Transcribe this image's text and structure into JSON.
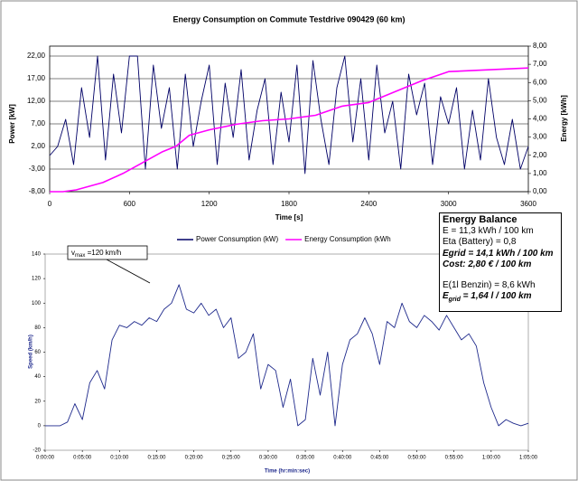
{
  "chart_data": [
    {
      "type": "line",
      "title": "Energy Consumption on Commute Testdrive 090429 (60 km)",
      "x_label": "Time [s]",
      "y_label": "Power [kW]",
      "y2_label": "Energy [kWh]",
      "xlim": [
        0,
        3600
      ],
      "xticks": [
        0,
        600,
        1200,
        1800,
        2400,
        3000,
        3600
      ],
      "ylim": [
        -8,
        22
      ],
      "yticks": [
        {
          "value": -8,
          "label": "-8,00"
        },
        {
          "value": -3,
          "label": "-3,00"
        },
        {
          "value": 2,
          "label": "2,00"
        },
        {
          "value": 7,
          "label": "7,00"
        },
        {
          "value": 12,
          "label": "12,00"
        },
        {
          "value": 17,
          "label": "17,00"
        },
        {
          "value": 22,
          "label": "22,00"
        }
      ],
      "y2lim": [
        0,
        8
      ],
      "y2ticks": [
        {
          "value": 0,
          "label": "0,00"
        },
        {
          "value": 1,
          "label": "1,00"
        },
        {
          "value": 2,
          "label": "2,00"
        },
        {
          "value": 3,
          "label": "3,00"
        },
        {
          "value": 4,
          "label": "4,00"
        },
        {
          "value": 5,
          "label": "5,00"
        },
        {
          "value": 6,
          "label": "6,00"
        },
        {
          "value": 7,
          "label": "7,00"
        },
        {
          "value": 8,
          "label": "8,00"
        }
      ],
      "grid": true,
      "legend": "bottom",
      "series": [
        {
          "name": "Power Consumption (kW)",
          "color": "#000066",
          "x": [
            0,
            60,
            120,
            180,
            240,
            300,
            360,
            420,
            480,
            540,
            600,
            660,
            720,
            780,
            840,
            900,
            960,
            1020,
            1080,
            1140,
            1200,
            1260,
            1320,
            1380,
            1440,
            1500,
            1560,
            1620,
            1680,
            1740,
            1800,
            1860,
            1920,
            1980,
            2040,
            2100,
            2160,
            2220,
            2280,
            2340,
            2400,
            2460,
            2520,
            2580,
            2640,
            2700,
            2760,
            2820,
            2880,
            2940,
            3000,
            3060,
            3120,
            3180,
            3240,
            3300,
            3360,
            3420,
            3480,
            3540,
            3600
          ],
          "values": [
            0,
            2,
            8,
            -2,
            15,
            4,
            22,
            -1,
            18,
            5,
            22,
            22,
            -3,
            20,
            6,
            15,
            -3,
            18,
            2,
            12,
            20,
            -2,
            16,
            4,
            19,
            -1,
            10,
            17,
            -2,
            14,
            3,
            20,
            -4,
            21,
            8,
            -2,
            15,
            22,
            3,
            17,
            -1,
            20,
            5,
            12,
            -3,
            18,
            9,
            16,
            -2,
            13,
            7,
            15,
            -3,
            10,
            -1,
            17,
            4,
            -2,
            8,
            -3,
            2
          ]
        },
        {
          "name": "Energy Consumption (kWh",
          "color": "#ff00ff",
          "axis": "y2",
          "x": [
            0,
            100,
            200,
            400,
            550,
            700,
            850,
            950,
            1050,
            1200,
            1400,
            1600,
            1800,
            2000,
            2200,
            2400,
            2600,
            2800,
            3000,
            3300,
            3600
          ],
          "values": [
            0,
            0,
            0.1,
            0.5,
            1.0,
            1.6,
            2.2,
            2.5,
            3.1,
            3.4,
            3.7,
            3.9,
            4.0,
            4.2,
            4.7,
            4.9,
            5.5,
            6.1,
            6.6,
            6.7,
            6.8
          ]
        }
      ]
    },
    {
      "type": "line",
      "x_label": "Time (hr:min:sec)",
      "y_label": "Speed (km/h)",
      "xlim": [
        0,
        3900
      ],
      "xticks": [
        {
          "value": 0,
          "label": "0:00:00"
        },
        {
          "value": 300,
          "label": "0:05:00"
        },
        {
          "value": 600,
          "label": "0:10:00"
        },
        {
          "value": 900,
          "label": "0:15:00"
        },
        {
          "value": 1200,
          "label": "0:20:00"
        },
        {
          "value": 1500,
          "label": "0:25:00"
        },
        {
          "value": 1800,
          "label": "0:30:00"
        },
        {
          "value": 2100,
          "label": "0:35:00"
        },
        {
          "value": 2400,
          "label": "0:40:00"
        },
        {
          "value": 2700,
          "label": "0:45:00"
        },
        {
          "value": 3000,
          "label": "0:50:00"
        },
        {
          "value": 3300,
          "label": "0:55:00"
        },
        {
          "value": 3600,
          "label": "1:00:00"
        },
        {
          "value": 3900,
          "label": "1:05:00"
        }
      ],
      "ylim": [
        -20,
        140
      ],
      "yticks": [
        -20,
        0,
        20,
        40,
        60,
        80,
        100,
        120,
        140
      ],
      "grid": false,
      "annotation": {
        "symbol": "v",
        "subscript": "max",
        "text": " =120 km/h"
      },
      "series": [
        {
          "color": "#1f2a8c",
          "x": [
            0,
            60,
            120,
            180,
            240,
            300,
            360,
            420,
            480,
            540,
            600,
            660,
            720,
            780,
            840,
            900,
            960,
            1020,
            1080,
            1140,
            1200,
            1260,
            1320,
            1380,
            1440,
            1500,
            1560,
            1620,
            1680,
            1740,
            1800,
            1860,
            1920,
            1980,
            2040,
            2100,
            2160,
            2220,
            2280,
            2340,
            2400,
            2460,
            2520,
            2580,
            2640,
            2700,
            2760,
            2820,
            2880,
            2940,
            3000,
            3060,
            3120,
            3180,
            3240,
            3300,
            3360,
            3420,
            3480,
            3540,
            3600,
            3660,
            3720,
            3780,
            3840,
            3900
          ],
          "values": [
            0,
            0,
            0,
            3,
            18,
            5,
            35,
            45,
            30,
            70,
            82,
            80,
            85,
            82,
            88,
            85,
            95,
            100,
            115,
            95,
            92,
            100,
            90,
            95,
            80,
            88,
            55,
            60,
            75,
            30,
            50,
            45,
            15,
            38,
            0,
            5,
            55,
            25,
            60,
            0,
            50,
            70,
            75,
            88,
            75,
            50,
            85,
            80,
            100,
            85,
            80,
            90,
            85,
            78,
            90,
            80,
            70,
            75,
            65,
            35,
            15,
            0,
            5,
            2,
            0,
            2
          ]
        }
      ]
    }
  ],
  "energy_balance": {
    "title": "Energy Balance",
    "lines": [
      "E = 11,3 kWh / 100 km",
      "Eta (Battery) = 0,8",
      "Egrid = 14,1 kWh / 100 km",
      "Cost: 2,80 € / 100 km",
      "E(1l Benzin) = 8,6 kWh"
    ],
    "last": {
      "symbol": "E",
      "subscript": "grid",
      "text": " = 1,64 l / 100 km"
    }
  }
}
